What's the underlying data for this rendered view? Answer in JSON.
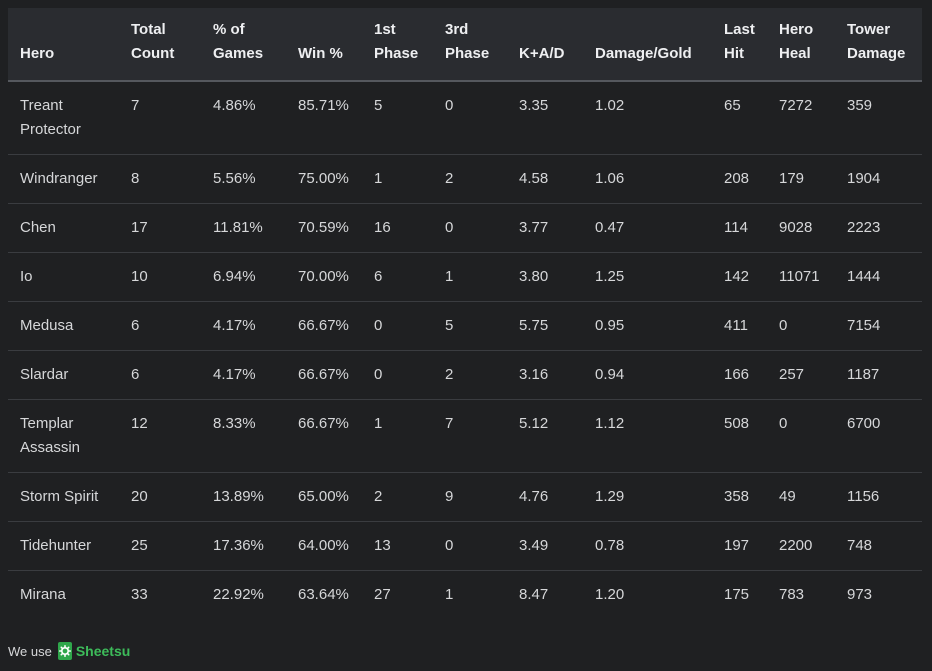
{
  "table": {
    "headers": [
      [
        "Hero"
      ],
      [
        "Total",
        "Count"
      ],
      [
        "% of",
        "Games"
      ],
      [
        "Win %"
      ],
      [
        "1st",
        "Phase"
      ],
      [
        "3rd",
        "Phase"
      ],
      [
        "K+A/D"
      ],
      [
        "Damage/Gold"
      ],
      [
        "Last",
        "Hit"
      ],
      [
        "Hero",
        "Heal"
      ],
      [
        "Tower",
        "Damage"
      ]
    ],
    "rows": [
      [
        [
          "Treant",
          "Protector"
        ],
        "7",
        "4.86%",
        "85.71%",
        "5",
        "0",
        "3.35",
        "1.02",
        "65",
        "7272",
        "359"
      ],
      [
        [
          "Windranger"
        ],
        "8",
        "5.56%",
        "75.00%",
        "1",
        "2",
        "4.58",
        "1.06",
        "208",
        "179",
        "1904"
      ],
      [
        [
          "Chen"
        ],
        "17",
        "11.81%",
        "70.59%",
        "16",
        "0",
        "3.77",
        "0.47",
        "114",
        "9028",
        "2223"
      ],
      [
        [
          "Io"
        ],
        "10",
        "6.94%",
        "70.00%",
        "6",
        "1",
        "3.80",
        "1.25",
        "142",
        "11071",
        "1444"
      ],
      [
        [
          "Medusa"
        ],
        "6",
        "4.17%",
        "66.67%",
        "0",
        "5",
        "5.75",
        "0.95",
        "411",
        "0",
        "7154"
      ],
      [
        [
          "Slardar"
        ],
        "6",
        "4.17%",
        "66.67%",
        "0",
        "2",
        "3.16",
        "0.94",
        "166",
        "257",
        "1187"
      ],
      [
        [
          "Templar",
          "Assassin"
        ],
        "12",
        "8.33%",
        "66.67%",
        "1",
        "7",
        "5.12",
        "1.12",
        "508",
        "0",
        "6700"
      ],
      [
        [
          "Storm Spirit"
        ],
        "20",
        "13.89%",
        "65.00%",
        "2",
        "9",
        "4.76",
        "1.29",
        "358",
        "49",
        "1156"
      ],
      [
        [
          "Tidehunter"
        ],
        "25",
        "17.36%",
        "64.00%",
        "13",
        "0",
        "3.49",
        "0.78",
        "197",
        "2200",
        "748"
      ],
      [
        [
          "Mirana"
        ],
        "33",
        "22.92%",
        "63.64%",
        "27",
        "1",
        "8.47",
        "1.20",
        "175",
        "783",
        "973"
      ]
    ]
  },
  "footer": {
    "prefix": "We use",
    "brand": "Sheetsu",
    "brand_icon": "sheetsu-gear-icon",
    "brand_color": "#3dbb5a"
  }
}
